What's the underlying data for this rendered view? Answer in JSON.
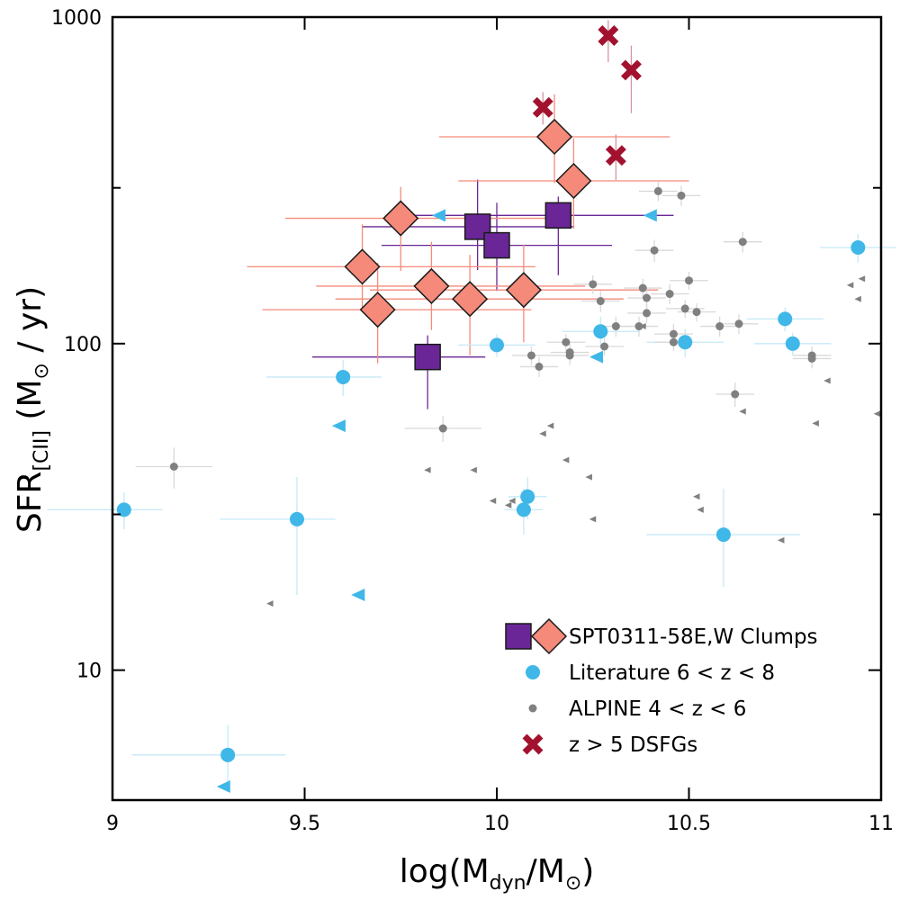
{
  "chart_data": {
    "type": "scatter",
    "title": "",
    "xlabel": "log(M_dyn/M_sun)",
    "ylabel": "SFR_[CII] (M_sun / yr)",
    "xlim": [
      9,
      11
    ],
    "ylim": [
      4,
      1000
    ],
    "yscale": "log",
    "grid": false,
    "legend_position": "bottom-right",
    "x_ticks": [
      9,
      9.5,
      10,
      10.5,
      11
    ],
    "x_tick_labels": [
      "9",
      "9.5",
      "10",
      "10.5",
      "11"
    ],
    "y_ticks": [
      10,
      100,
      1000
    ],
    "y_tick_labels": [
      "10",
      "100",
      "1000"
    ],
    "xlabel_parts": {
      "pre": "log(M",
      "sub1": "dyn",
      "mid": "/M",
      "sun": "⊙",
      "post": ")"
    },
    "ylabel_parts": {
      "pre": "SFR",
      "sub": "[CII]",
      "mid": " (M",
      "sun": "⊙",
      "post": " / yr)"
    },
    "series": [
      {
        "name": "SPT0311-58E,W Clumps",
        "subset": "E",
        "marker": "square",
        "color": "#6a2696",
        "points": [
          {
            "x": 9.82,
            "y": 91,
            "xerr": [
              0.3,
              0.15
            ],
            "yerr": [
              28,
              15
            ]
          },
          {
            "x": 9.95,
            "y": 228,
            "xerr": [
              0.3,
              0.25
            ],
            "yerr": [
              60,
              90
            ]
          },
          {
            "x": 10.0,
            "y": 200,
            "xerr": [
              0.3,
              0.3
            ],
            "yerr": [
              55,
              70
            ]
          },
          {
            "x": 10.16,
            "y": 247,
            "xerr": [
              0.42,
              0.3
            ],
            "yerr": [
              85,
              35
            ]
          }
        ]
      },
      {
        "name": "SPT0311-58E,W Clumps",
        "subset": "W",
        "marker": "diamond",
        "color": "#f58a7a",
        "points": [
          {
            "x": 9.65,
            "y": 172,
            "xerr": [
              0.3,
              0.45
            ],
            "yerr": [
              45,
              60
            ]
          },
          {
            "x": 9.69,
            "y": 127,
            "xerr": [
              0.3,
              0.4
            ],
            "yerr": [
              40,
              50
            ]
          },
          {
            "x": 9.75,
            "y": 242,
            "xerr": [
              0.3,
              0.4
            ],
            "yerr": [
              75,
              60
            ]
          },
          {
            "x": 9.83,
            "y": 150,
            "xerr": [
              0.3,
              0.4
            ],
            "yerr": [
              40,
              55
            ]
          },
          {
            "x": 9.93,
            "y": 137,
            "xerr": [
              0.35,
              0.4
            ],
            "yerr": [
              45,
              50
            ]
          },
          {
            "x": 10.07,
            "y": 146,
            "xerr": [
              0.4,
              0.35
            ],
            "yerr": [
              45,
              55
            ]
          },
          {
            "x": 10.15,
            "y": 430,
            "xerr": [
              0.3,
              0.3
            ],
            "yerr": [
              120,
              150
            ]
          },
          {
            "x": 10.2,
            "y": 315,
            "xerr": [
              0.3,
              0.3
            ],
            "yerr": [
              90,
              110
            ]
          }
        ]
      },
      {
        "name": "Literature 6 < z < 8",
        "marker": "circle",
        "color": "#3fb7e8",
        "points": [
          {
            "x": 9.03,
            "y": 31,
            "xerr": [
              0.2,
              0.1
            ],
            "yerr": [
              4,
              4
            ]
          },
          {
            "x": 9.3,
            "y": 5.5,
            "xerr": [
              0.25,
              0.15
            ],
            "yerr": [
              1.0,
              1.3
            ]
          },
          {
            "x": 9.48,
            "y": 29,
            "xerr": [
              0.2,
              0.1
            ],
            "yerr": [
              12,
              10
            ]
          },
          {
            "x": 9.6,
            "y": 79,
            "xerr": [
              0.2,
              0.1
            ],
            "yerr": [
              10,
              10
            ]
          },
          {
            "x": 10.0,
            "y": 99,
            "xerr": [
              0.1,
              0.1
            ],
            "yerr": [
              8,
              8
            ]
          },
          {
            "x": 10.07,
            "y": 31,
            "xerr": [
              0.05,
              0.05
            ],
            "yerr": [
              5,
              5
            ]
          },
          {
            "x": 10.08,
            "y": 34,
            "xerr": [
              0.05,
              0.05
            ],
            "yerr": [
              5,
              5
            ]
          },
          {
            "x": 10.27,
            "y": 109,
            "xerr": [
              0.1,
              0.1
            ],
            "yerr": [
              12,
              12
            ]
          },
          {
            "x": 10.49,
            "y": 101,
            "xerr": [
              0.1,
              0.1
            ],
            "yerr": [
              10,
              10
            ]
          },
          {
            "x": 10.59,
            "y": 26,
            "xerr": [
              0.2,
              0.2
            ],
            "yerr": [
              8,
              10
            ]
          },
          {
            "x": 10.75,
            "y": 119,
            "xerr": [
              0.1,
              0.1
            ],
            "yerr": [
              10,
              10
            ]
          },
          {
            "x": 10.77,
            "y": 100,
            "xerr": [
              0.1,
              0.1
            ],
            "yerr": [
              8,
              8
            ]
          },
          {
            "x": 10.94,
            "y": 197,
            "xerr": [
              0.1,
              0.1
            ],
            "yerr": [
              20,
              20
            ]
          }
        ]
      },
      {
        "name": "Literature 6 < z < 8 (upper limits)",
        "marker": "triangle-left",
        "color": "#3fb7e8",
        "points": [
          {
            "x": 9.29,
            "y": 4.4
          },
          {
            "x": 9.59,
            "y": 56
          },
          {
            "x": 9.64,
            "y": 17
          },
          {
            "x": 9.85,
            "y": 247
          },
          {
            "x": 10.26,
            "y": 91
          },
          {
            "x": 10.4,
            "y": 247
          }
        ]
      },
      {
        "name": "ALPINE 4 < z < 6",
        "marker": "circle-small",
        "color": "#808080",
        "points": [
          {
            "x": 9.16,
            "y": 42,
            "xerr": [
              0.1,
              0.1
            ],
            "yerr": [
              6,
              6
            ]
          },
          {
            "x": 9.86,
            "y": 55,
            "xerr": [
              0.1,
              0.1
            ],
            "yerr": [
              5,
              5
            ]
          },
          {
            "x": 10.09,
            "y": 92,
            "xerr": [
              0.05,
              0.05
            ],
            "yerr": [
              6,
              6
            ]
          },
          {
            "x": 10.11,
            "y": 85,
            "xerr": [
              0.05,
              0.05
            ],
            "yerr": [
              6,
              6
            ]
          },
          {
            "x": 10.18,
            "y": 101,
            "xerr": [
              0.05,
              0.05
            ],
            "yerr": [
              6,
              6
            ]
          },
          {
            "x": 10.19,
            "y": 94,
            "xerr": [
              0.05,
              0.05
            ],
            "yerr": [
              6,
              6
            ]
          },
          {
            "x": 10.19,
            "y": 92,
            "xerr": [
              0.05,
              0.05
            ],
            "yerr": [
              6,
              6
            ]
          },
          {
            "x": 10.25,
            "y": 152,
            "xerr": [
              0.05,
              0.05
            ],
            "yerr": [
              10,
              10
            ]
          },
          {
            "x": 10.27,
            "y": 135,
            "xerr": [
              0.05,
              0.05
            ],
            "yerr": [
              10,
              10
            ]
          },
          {
            "x": 10.28,
            "y": 98,
            "xerr": [
              0.05,
              0.05
            ],
            "yerr": [
              6,
              6
            ]
          },
          {
            "x": 10.31,
            "y": 113,
            "xerr": [
              0.05,
              0.05
            ],
            "yerr": [
              8,
              8
            ]
          },
          {
            "x": 10.37,
            "y": 113,
            "xerr": [
              0.05,
              0.05
            ],
            "yerr": [
              8,
              8
            ]
          },
          {
            "x": 10.38,
            "y": 148,
            "xerr": [
              0.05,
              0.05
            ],
            "yerr": [
              10,
              10
            ]
          },
          {
            "x": 10.39,
            "y": 124,
            "xerr": [
              0.05,
              0.05
            ],
            "yerr": [
              8,
              8
            ]
          },
          {
            "x": 10.39,
            "y": 138,
            "xerr": [
              0.05,
              0.05
            ],
            "yerr": [
              10,
              10
            ]
          },
          {
            "x": 10.41,
            "y": 193,
            "xerr": [
              0.05,
              0.05
            ],
            "yerr": [
              15,
              15
            ]
          },
          {
            "x": 10.42,
            "y": 293,
            "xerr": [
              0.05,
              0.05
            ],
            "yerr": [
              20,
              20
            ]
          },
          {
            "x": 10.45,
            "y": 142,
            "xerr": [
              0.05,
              0.05
            ],
            "yerr": [
              10,
              10
            ]
          },
          {
            "x": 10.46,
            "y": 107,
            "xerr": [
              0.05,
              0.05
            ],
            "yerr": [
              8,
              8
            ]
          },
          {
            "x": 10.46,
            "y": 101,
            "xerr": [
              0.05,
              0.05
            ],
            "yerr": [
              6,
              6
            ]
          },
          {
            "x": 10.48,
            "y": 284,
            "xerr": [
              0.05,
              0.05
            ],
            "yerr": [
              20,
              20
            ]
          },
          {
            "x": 10.49,
            "y": 128,
            "xerr": [
              0.05,
              0.05
            ],
            "yerr": [
              8,
              8
            ]
          },
          {
            "x": 10.5,
            "y": 156,
            "xerr": [
              0.05,
              0.05
            ],
            "yerr": [
              10,
              10
            ]
          },
          {
            "x": 10.52,
            "y": 125,
            "xerr": [
              0.05,
              0.05
            ],
            "yerr": [
              8,
              8
            ]
          },
          {
            "x": 10.58,
            "y": 113,
            "xerr": [
              0.05,
              0.05
            ],
            "yerr": [
              8,
              8
            ]
          },
          {
            "x": 10.62,
            "y": 70,
            "xerr": [
              0.05,
              0.05
            ],
            "yerr": [
              6,
              6
            ]
          },
          {
            "x": 10.63,
            "y": 115,
            "xerr": [
              0.05,
              0.05
            ],
            "yerr": [
              8,
              8
            ]
          },
          {
            "x": 10.64,
            "y": 205,
            "xerr": [
              0.05,
              0.05
            ],
            "yerr": [
              15,
              15
            ]
          },
          {
            "x": 10.82,
            "y": 90,
            "xerr": [
              0.05,
              0.05
            ],
            "yerr": [
              6,
              6
            ]
          },
          {
            "x": 10.82,
            "y": 92,
            "xerr": [
              0.05,
              0.05
            ],
            "yerr": [
              6,
              6
            ]
          }
        ]
      },
      {
        "name": "ALPINE 4 < z < 6 (upper limits)",
        "marker": "triangle-left-small",
        "color": "#808080",
        "points": [
          {
            "x": 9.41,
            "y": 16
          },
          {
            "x": 9.82,
            "y": 41
          },
          {
            "x": 9.94,
            "y": 41
          },
          {
            "x": 9.99,
            "y": 33
          },
          {
            "x": 10.03,
            "y": 32
          },
          {
            "x": 10.04,
            "y": 33
          },
          {
            "x": 10.12,
            "y": 53
          },
          {
            "x": 10.14,
            "y": 56
          },
          {
            "x": 10.18,
            "y": 44
          },
          {
            "x": 10.24,
            "y": 39
          },
          {
            "x": 10.25,
            "y": 29
          },
          {
            "x": 10.38,
            "y": 113
          },
          {
            "x": 10.52,
            "y": 34
          },
          {
            "x": 10.53,
            "y": 31
          },
          {
            "x": 10.64,
            "y": 62
          },
          {
            "x": 10.74,
            "y": 25
          },
          {
            "x": 10.83,
            "y": 57
          },
          {
            "x": 10.86,
            "y": 77
          },
          {
            "x": 10.92,
            "y": 151
          },
          {
            "x": 10.94,
            "y": 137
          },
          {
            "x": 10.95,
            "y": 158
          },
          {
            "x": 10.99,
            "y": 61
          }
        ]
      },
      {
        "name": "z > 5 DSFGs",
        "marker": "x",
        "color": "#a2122e",
        "points": [
          {
            "x": 10.12,
            "y": 529,
            "xerr": [
              0.0,
              0.0
            ],
            "yerr": [
              60,
              60
            ]
          },
          {
            "x": 10.29,
            "y": 878,
            "xerr": [
              0.0,
              0.0
            ],
            "yerr": [
              150,
              100
            ]
          },
          {
            "x": 10.31,
            "y": 377,
            "xerr": [
              0.0,
              0.0
            ],
            "yerr": [
              60,
              60
            ]
          },
          {
            "x": 10.35,
            "y": 688,
            "xerr": [
              0.0,
              0.0
            ],
            "yerr": [
              180,
              130
            ]
          }
        ]
      }
    ],
    "legend": [
      {
        "label": "SPT0311-58E,W Clumps",
        "markers": [
          "square",
          "diamond"
        ],
        "colors": [
          "#6a2696",
          "#f58a7a"
        ]
      },
      {
        "label": "Literature 6 < z < 8",
        "markers": [
          "circle"
        ],
        "colors": [
          "#3fb7e8"
        ]
      },
      {
        "label": "ALPINE 4 < z < 6",
        "markers": [
          "circle-small"
        ],
        "colors": [
          "#808080"
        ]
      },
      {
        "label": "z > 5 DSFGs",
        "markers": [
          "x"
        ],
        "colors": [
          "#a2122e"
        ]
      }
    ]
  }
}
